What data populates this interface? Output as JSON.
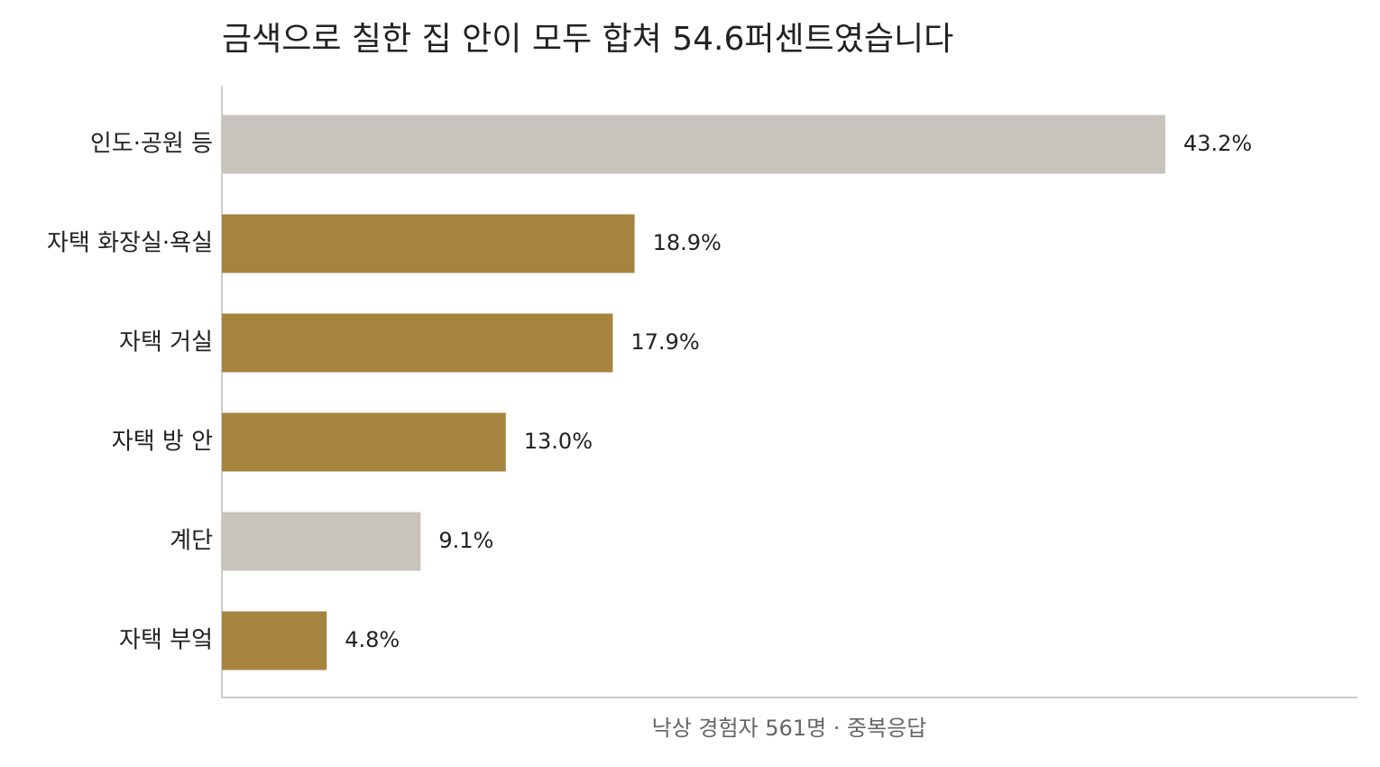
{
  "chart_data": {
    "type": "bar",
    "orientation": "horizontal",
    "title": "금색으로 칠한 집 안이 모두 합쳐 54.6퍼센트였습니다",
    "xlabel": "낙상 경험자 561명 · 중복응답",
    "categories": [
      "인도·공원 등",
      "자택 화장실·욕실",
      "자택 거실",
      "자택 방 안",
      "계단",
      "자택 부엌"
    ],
    "values": [
      43.2,
      18.9,
      17.9,
      13.0,
      9.1,
      4.8
    ],
    "value_labels": [
      "43.2%",
      "18.9%",
      "17.9%",
      "13.0%",
      "9.1%",
      "4.8%"
    ],
    "colors": [
      "#c8c3bc",
      "#a6843f",
      "#a6843f",
      "#a6843f",
      "#c8c3bc",
      "#a6843f"
    ],
    "xlim": [
      0,
      52
    ],
    "grid": false
  }
}
